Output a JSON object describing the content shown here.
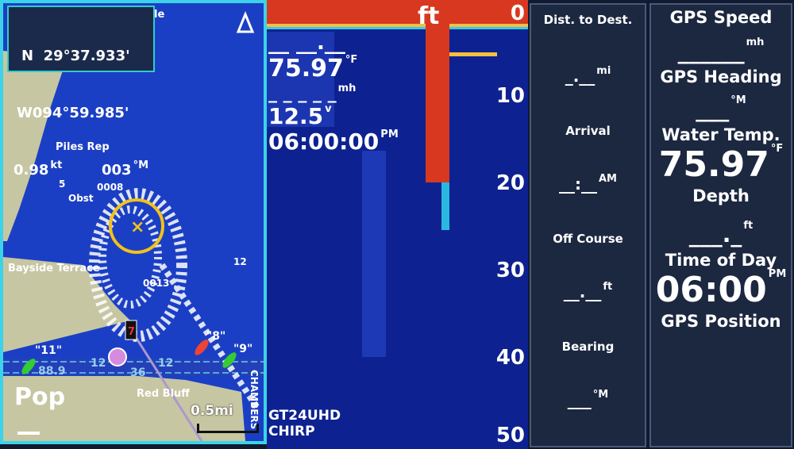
{
  "map": {
    "position": {
      "lat": "N  29°37.933'",
      "lon": "W094°59.985'",
      "speed": "0.98",
      "speed_unit": "kt",
      "heading": "003",
      "heading_unit": "°M"
    },
    "labels": {
      "piles": "Piles Rep",
      "bayside": "Bayside Terrace",
      "red_bluff": "Red Bluff",
      "chambers": "CHAMBERS",
      "obst": "Obst",
      "l0008": "0008",
      "l0013": "0013",
      "l5": "5",
      "l12a": "12",
      "l12b": "12",
      "l12c": "12",
      "l36": "36",
      "l889": "88.9",
      "m11": "\"11\"",
      "m8": "\"8\"",
      "m9": "\"9\"",
      "m7": "7",
      "top_partial": "le"
    },
    "scale": "0.5mi",
    "watermark": "Pop",
    "colors": {
      "water": "#1b3fc4",
      "land": "#c6c6a2",
      "border": "#3cd3e8"
    }
  },
  "sonar": {
    "depth_value": "__ __.__",
    "depth_unit": "ft",
    "water_temp": "75.97",
    "temp_unit": "°F",
    "speed": "_ _ _ _ _",
    "speed_unit": "mh",
    "voltage": "12.5",
    "voltage_unit": "v",
    "time": "06:00:00",
    "time_unit": "PM",
    "scale": [
      "0",
      "10",
      "20",
      "30",
      "40",
      "50"
    ],
    "transducer": "GT24UHD",
    "mode": "CHIRP"
  },
  "data_left": [
    {
      "label": "Dist. to Dest.",
      "value": "_.__",
      "unit": "mi"
    },
    {
      "label": "Arrival",
      "value": "__:__",
      "unit": "AM"
    },
    {
      "label": "Off Course",
      "value": "__.__",
      "unit": "ft"
    },
    {
      "label": "Bearing",
      "value": "___",
      "unit": "°M"
    }
  ],
  "data_right": [
    {
      "label": "GPS Speed",
      "value": "______",
      "unit": "mh"
    },
    {
      "label": "GPS Heading",
      "value": "___",
      "unit": "°M"
    },
    {
      "label": "Water Temp.",
      "value": "75.97",
      "unit": "°F"
    },
    {
      "label": "Depth",
      "value": "___._",
      "unit": "ft"
    },
    {
      "label": "Time of Day",
      "value": "06:00",
      "unit": "PM"
    },
    {
      "label": "GPS Position",
      "value": "",
      "unit": ""
    }
  ]
}
